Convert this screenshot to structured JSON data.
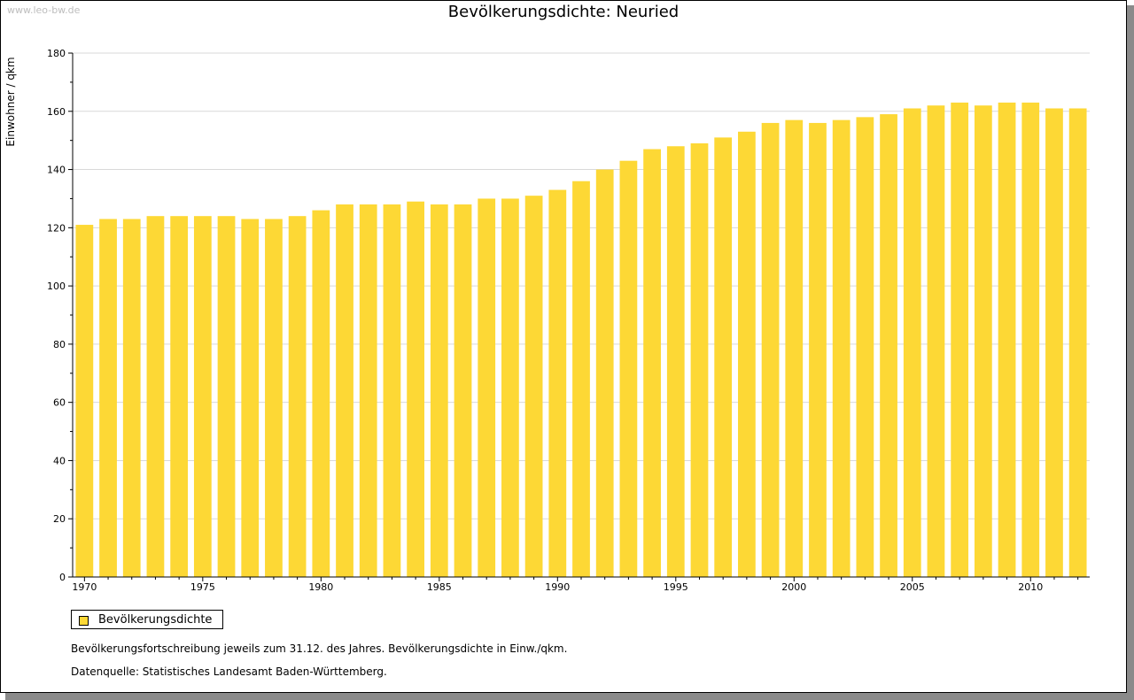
{
  "watermark": "www.leo-bw.de",
  "colors": {
    "bar": "#fdd835",
    "grid": "#d9d9d9",
    "axis": "#000000"
  },
  "legend": {
    "label": "Bevölkerungsdichte"
  },
  "footnotes": {
    "line1": "Bevölkerungsfortschreibung jeweils zum 31.12. des Jahres. Bevölkerungsdichte in Einw./qkm.",
    "line2": "Datenquelle: Statistisches Landesamt Baden-Württemberg."
  },
  "chart_data": {
    "type": "bar",
    "title": "Bevölkerungsdichte: Neuried",
    "xlabel": "",
    "ylabel": "Einwohner / qkm",
    "ylim": [
      0,
      180
    ],
    "yticks": [
      0,
      20,
      40,
      60,
      80,
      100,
      120,
      140,
      160,
      180
    ],
    "xtick_labels": [
      "1970",
      "1975",
      "1980",
      "1985",
      "1990",
      "1995",
      "2000",
      "2005",
      "2010"
    ],
    "grid": true,
    "legend_position": "bottom-left",
    "categories": [
      1970,
      1971,
      1972,
      1973,
      1974,
      1975,
      1976,
      1977,
      1978,
      1979,
      1980,
      1981,
      1982,
      1983,
      1984,
      1985,
      1986,
      1987,
      1988,
      1989,
      1990,
      1991,
      1992,
      1993,
      1994,
      1995,
      1996,
      1997,
      1998,
      1999,
      2000,
      2001,
      2002,
      2003,
      2004,
      2005,
      2006,
      2007,
      2008,
      2009,
      2010,
      2011,
      2012
    ],
    "series": [
      {
        "name": "Bevölkerungsdichte",
        "values": [
          121,
          123,
          123,
          124,
          124,
          124,
          124,
          123,
          123,
          124,
          126,
          128,
          128,
          128,
          129,
          128,
          128,
          130,
          130,
          131,
          133,
          136,
          140,
          143,
          147,
          148,
          149,
          151,
          153,
          156,
          157,
          156,
          157,
          158,
          159,
          161,
          162,
          163,
          162,
          163,
          163,
          161,
          161
        ]
      }
    ]
  }
}
